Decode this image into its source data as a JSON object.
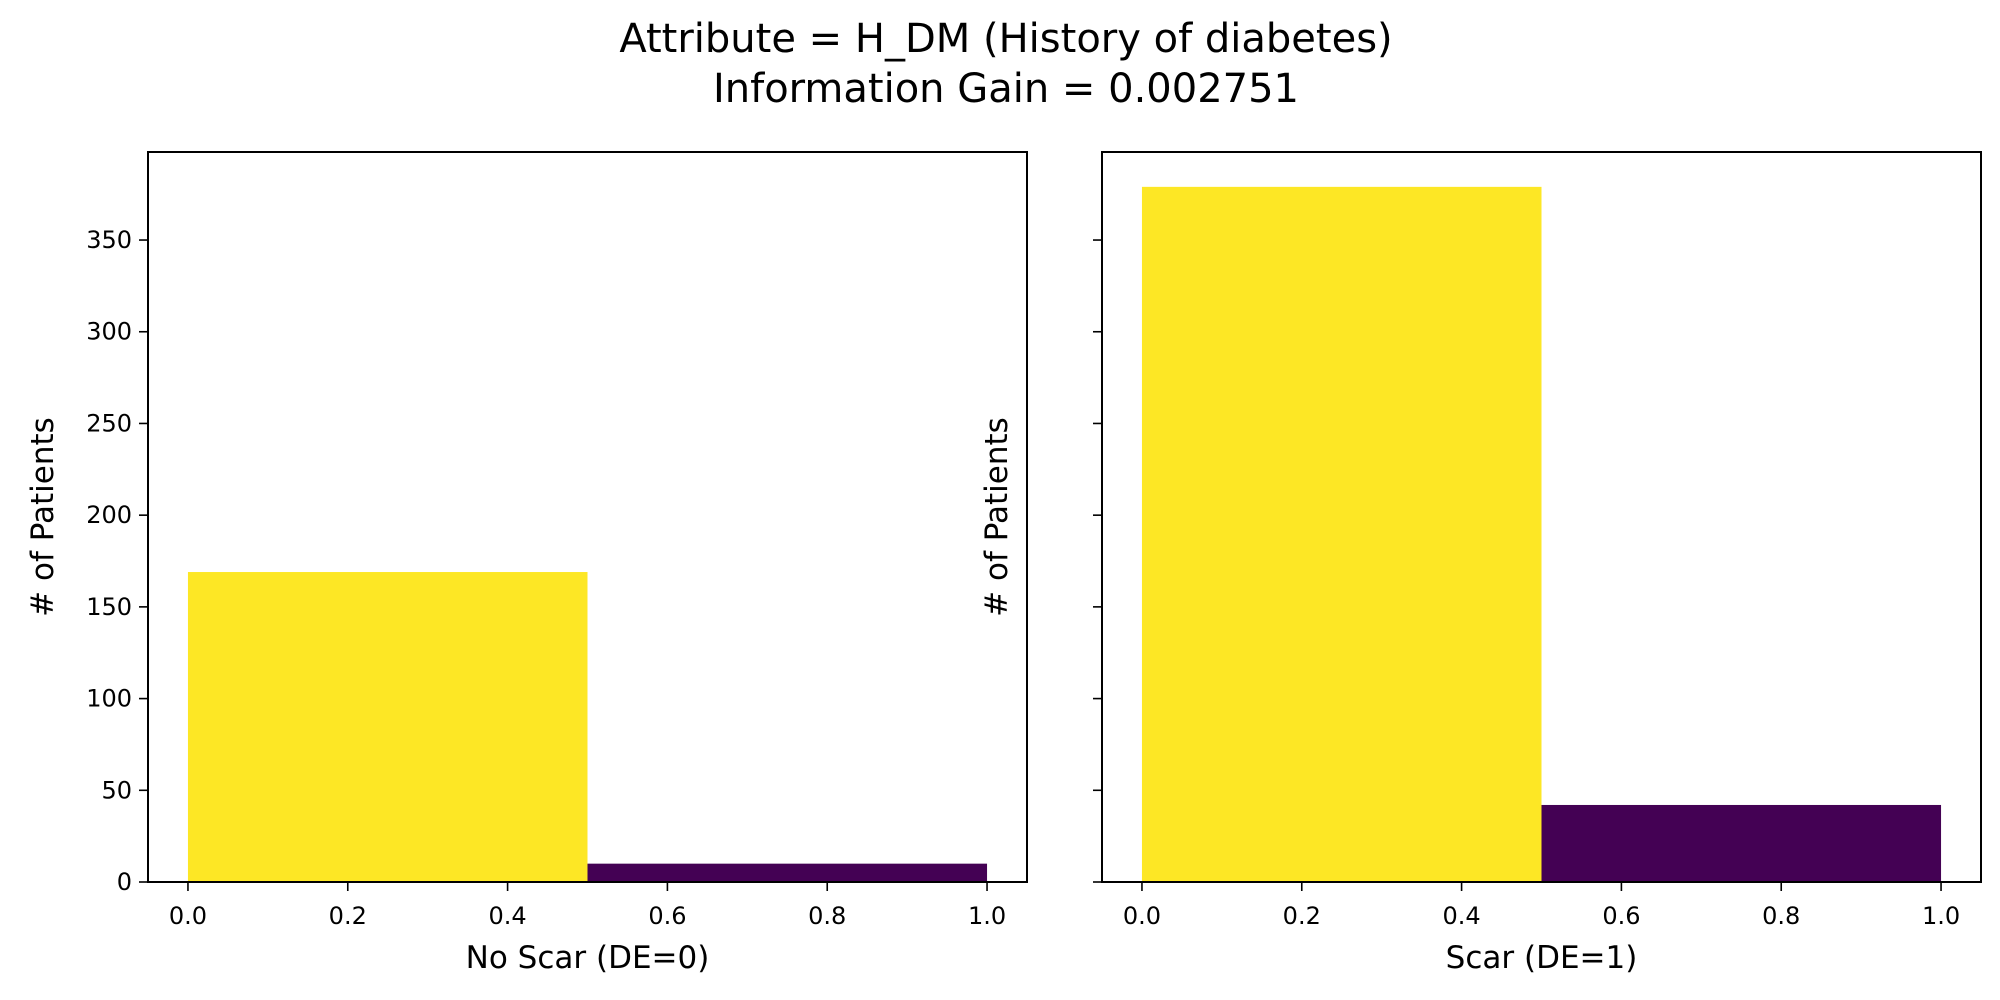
{
  "title_lines": [
    "Attribute = H_DM (History of diabetes)",
    "Information Gain = 0.002751"
  ],
  "colors": {
    "no_history": "#fde725",
    "history": "#440154",
    "axes": "#000000",
    "background": "#ffffff"
  },
  "chart_data": [
    {
      "type": "bar",
      "xlabel": "No Scar (DE=0)",
      "ylabel": "# of Patients",
      "bins": [
        {
          "x_start": 0.0,
          "x_end": 0.5,
          "value": 169,
          "color": "#fde725"
        },
        {
          "x_start": 0.5,
          "x_end": 1.0,
          "value": 10,
          "color": "#440154"
        }
      ],
      "xlim": [
        -0.05,
        1.05
      ],
      "ylim": [
        0,
        398
      ],
      "xticks": [
        0.0,
        0.2,
        0.4,
        0.6,
        0.8,
        1.0
      ],
      "xtick_labels": [
        "0.0",
        "0.2",
        "0.4",
        "0.6",
        "0.8",
        "1.0"
      ],
      "yticks": [
        0,
        50,
        100,
        150,
        200,
        250,
        300,
        350
      ],
      "ytick_labels": [
        "0",
        "50",
        "100",
        "150",
        "200",
        "250",
        "300",
        "350"
      ],
      "grid": false
    },
    {
      "type": "bar",
      "xlabel": "Scar (DE=1)",
      "ylabel": "# of Patients",
      "bins": [
        {
          "x_start": 0.0,
          "x_end": 0.5,
          "value": 379,
          "color": "#fde725"
        },
        {
          "x_start": 0.5,
          "x_end": 1.0,
          "value": 42,
          "color": "#440154"
        }
      ],
      "xlim": [
        -0.05,
        1.05
      ],
      "ylim": [
        0,
        398
      ],
      "xticks": [
        0.0,
        0.2,
        0.4,
        0.6,
        0.8,
        1.0
      ],
      "xtick_labels": [
        "0.0",
        "0.2",
        "0.4",
        "0.6",
        "0.8",
        "1.0"
      ],
      "yticks": [
        0,
        50,
        100,
        150,
        200,
        250,
        300,
        350
      ],
      "ytick_labels": [],
      "grid": false
    }
  ]
}
